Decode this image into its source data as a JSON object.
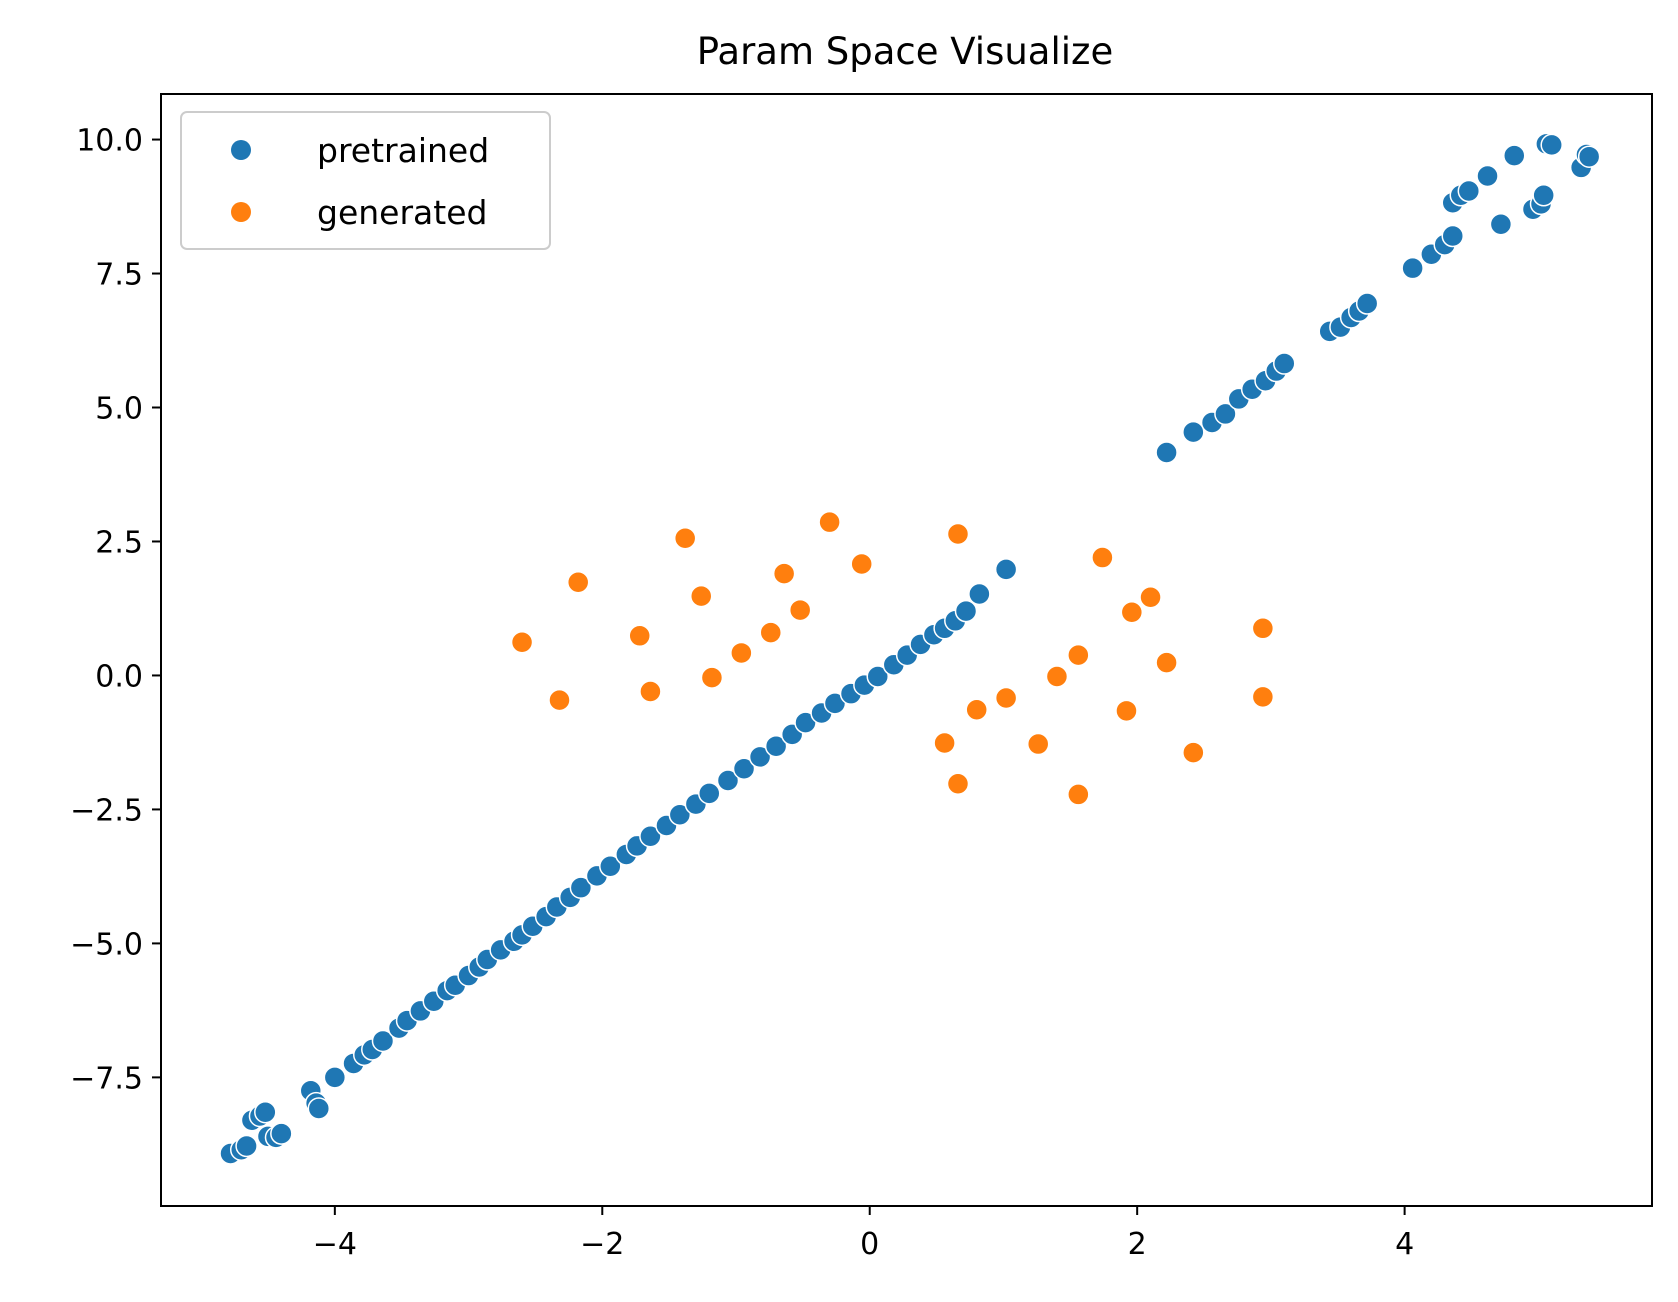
{
  "chart_data": {
    "type": "scatter",
    "title": "Param Space Visualize",
    "xlabel": "",
    "ylabel": "",
    "xlim": [
      -5.3,
      5.85
    ],
    "ylim": [
      -9.9,
      10.85
    ],
    "xticks": [
      -4,
      -2,
      0,
      2,
      4
    ],
    "xtick_labels": [
      "−4",
      "−2",
      "0",
      "2",
      "4"
    ],
    "yticks": [
      -7.5,
      -5.0,
      -2.5,
      0.0,
      2.5,
      5.0,
      7.5,
      10.0
    ],
    "ytick_labels": [
      "−7.5",
      "−5.0",
      "−2.5",
      "0.0",
      "2.5",
      "5.0",
      "7.5",
      "10.0"
    ],
    "grid": false,
    "legend_position": "upper-left",
    "series": [
      {
        "name": "pretrained",
        "color": "#1f77b4",
        "points": [
          [
            -4.78,
            -8.92
          ],
          [
            -4.7,
            -8.85
          ],
          [
            -4.66,
            -8.78
          ],
          [
            -4.62,
            -8.3
          ],
          [
            -4.56,
            -8.22
          ],
          [
            -4.52,
            -8.15
          ],
          [
            -4.5,
            -8.6
          ],
          [
            -4.44,
            -8.62
          ],
          [
            -4.4,
            -8.55
          ],
          [
            -4.18,
            -7.75
          ],
          [
            -4.14,
            -7.98
          ],
          [
            -4.12,
            -8.08
          ],
          [
            -4.0,
            -7.5
          ],
          [
            -3.86,
            -7.24
          ],
          [
            -3.78,
            -7.08
          ],
          [
            -3.72,
            -6.98
          ],
          [
            -3.64,
            -6.82
          ],
          [
            -3.52,
            -6.58
          ],
          [
            -3.46,
            -6.44
          ],
          [
            -3.36,
            -6.26
          ],
          [
            -3.26,
            -6.08
          ],
          [
            -3.16,
            -5.88
          ],
          [
            -3.1,
            -5.78
          ],
          [
            -3.0,
            -5.6
          ],
          [
            -2.92,
            -5.44
          ],
          [
            -2.86,
            -5.3
          ],
          [
            -2.76,
            -5.12
          ],
          [
            -2.66,
            -4.96
          ],
          [
            -2.6,
            -4.84
          ],
          [
            -2.52,
            -4.68
          ],
          [
            -2.42,
            -4.5
          ],
          [
            -2.34,
            -4.32
          ],
          [
            -2.24,
            -4.14
          ],
          [
            -2.16,
            -3.96
          ],
          [
            -2.04,
            -3.74
          ],
          [
            -1.94,
            -3.56
          ],
          [
            -1.82,
            -3.34
          ],
          [
            -1.74,
            -3.18
          ],
          [
            -1.64,
            -3.0
          ],
          [
            -1.52,
            -2.8
          ],
          [
            -1.42,
            -2.6
          ],
          [
            -1.3,
            -2.4
          ],
          [
            -1.2,
            -2.2
          ],
          [
            -1.06,
            -1.96
          ],
          [
            -0.94,
            -1.74
          ],
          [
            -0.82,
            -1.52
          ],
          [
            -0.7,
            -1.32
          ],
          [
            -0.58,
            -1.1
          ],
          [
            -0.48,
            -0.88
          ],
          [
            -0.36,
            -0.7
          ],
          [
            -0.26,
            -0.52
          ],
          [
            -0.14,
            -0.34
          ],
          [
            -0.04,
            -0.18
          ],
          [
            0.06,
            -0.02
          ],
          [
            0.18,
            0.2
          ],
          [
            0.28,
            0.38
          ],
          [
            0.38,
            0.58
          ],
          [
            0.48,
            0.76
          ],
          [
            0.56,
            0.88
          ],
          [
            0.64,
            1.02
          ],
          [
            0.72,
            1.2
          ],
          [
            0.82,
            1.52
          ],
          [
            1.02,
            1.98
          ],
          [
            2.22,
            4.16
          ],
          [
            2.42,
            4.54
          ],
          [
            2.56,
            4.72
          ],
          [
            2.66,
            4.88
          ],
          [
            2.76,
            5.16
          ],
          [
            2.86,
            5.34
          ],
          [
            2.96,
            5.5
          ],
          [
            3.04,
            5.68
          ],
          [
            3.1,
            5.82
          ],
          [
            3.44,
            6.42
          ],
          [
            3.52,
            6.5
          ],
          [
            3.6,
            6.68
          ],
          [
            3.66,
            6.8
          ],
          [
            3.72,
            6.94
          ],
          [
            4.06,
            7.6
          ],
          [
            4.2,
            7.86
          ],
          [
            4.3,
            8.04
          ],
          [
            4.36,
            8.2
          ],
          [
            4.36,
            8.82
          ],
          [
            4.42,
            8.96
          ],
          [
            4.48,
            9.04
          ],
          [
            4.62,
            9.32
          ],
          [
            4.72,
            8.42
          ],
          [
            4.82,
            9.7
          ],
          [
            4.96,
            8.7
          ],
          [
            5.02,
            8.8
          ],
          [
            5.04,
            8.96
          ],
          [
            5.06,
            9.92
          ],
          [
            5.1,
            9.9
          ],
          [
            5.32,
            9.48
          ],
          [
            5.36,
            9.72
          ],
          [
            5.38,
            9.68
          ]
        ]
      },
      {
        "name": "generated",
        "color": "#ff7f0e",
        "points": [
          [
            -2.6,
            0.62
          ],
          [
            -2.32,
            -0.46
          ],
          [
            -2.18,
            1.74
          ],
          [
            -1.72,
            0.74
          ],
          [
            -1.64,
            -0.3
          ],
          [
            -1.38,
            2.56
          ],
          [
            -1.26,
            1.48
          ],
          [
            -1.18,
            -0.04
          ],
          [
            -0.96,
            0.42
          ],
          [
            -0.74,
            0.8
          ],
          [
            -0.64,
            1.9
          ],
          [
            -0.52,
            1.22
          ],
          [
            -0.3,
            2.86
          ],
          [
            -0.06,
            2.08
          ],
          [
            0.56,
            -1.26
          ],
          [
            0.66,
            2.64
          ],
          [
            0.66,
            -2.02
          ],
          [
            0.8,
            -0.64
          ],
          [
            1.02,
            -0.42
          ],
          [
            1.26,
            -1.28
          ],
          [
            1.4,
            -0.02
          ],
          [
            1.56,
            0.38
          ],
          [
            1.56,
            -2.22
          ],
          [
            1.74,
            2.2
          ],
          [
            1.92,
            -0.66
          ],
          [
            1.96,
            1.18
          ],
          [
            2.1,
            1.46
          ],
          [
            2.22,
            0.24
          ],
          [
            2.42,
            -1.44
          ],
          [
            2.94,
            0.88
          ],
          [
            2.94,
            -0.4
          ]
        ]
      }
    ]
  }
}
